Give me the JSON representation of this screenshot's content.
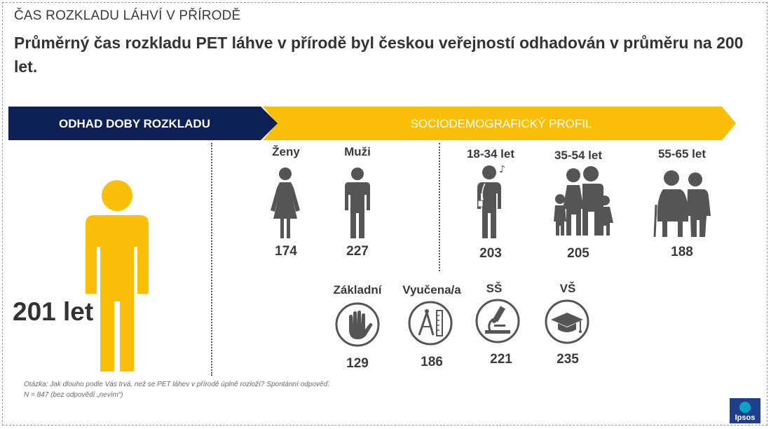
{
  "supertitle": "ČAS ROZKLADU LÁHVÍ V PŘÍRODĚ",
  "title": "Průměrný čas rozkladu PET láhve v přírodě byl českou veřejností odhadován v průměru na 200 let.",
  "banner": {
    "left_label": "ODHAD DOBY ROZKLADU",
    "right_label": "SOCIODEMOGRAFICKÝ PROFIL",
    "left_color": "#0d2156",
    "right_color": "#fbbf0a"
  },
  "overall": {
    "value_label": "201 let",
    "figure_color": "#fbbf0a"
  },
  "chart_data": {
    "type": "table",
    "unit": "let",
    "overall": 201,
    "groups": [
      {
        "name": "gender",
        "items": [
          {
            "label": "Ženy",
            "value": 174,
            "icon": "woman-icon"
          },
          {
            "label": "Muži",
            "value": 227,
            "icon": "man-icon"
          }
        ]
      },
      {
        "name": "age",
        "items": [
          {
            "label": "18-34 let",
            "value": 203,
            "icon": "young-person-music-icon"
          },
          {
            "label": "35-54 let",
            "value": 205,
            "icon": "family-icon"
          },
          {
            "label": "55-65 let",
            "value": 188,
            "icon": "elderly-couple-icon"
          }
        ]
      },
      {
        "name": "education",
        "items": [
          {
            "label": "Základní",
            "value": 129,
            "icon": "hand-icon"
          },
          {
            "label": "Vyučena/a",
            "value": 186,
            "icon": "compass-ruler-icon"
          },
          {
            "label": "SŠ",
            "value": 221,
            "icon": "microscope-icon"
          },
          {
            "label": "VŠ",
            "value": 235,
            "icon": "graduation-cap-icon"
          }
        ]
      }
    ]
  },
  "notes": {
    "question": "Otázka: Jak dlouho podle Vás trvá, než se PET láhev v přírodě úplně rozloží? Spontánní odpověď.",
    "sample": "N = 847 (bez odpovědí „nevím“)"
  },
  "logo": {
    "text": "Ipsos",
    "color": "#1f3e8c"
  },
  "icon_color": "#555555"
}
